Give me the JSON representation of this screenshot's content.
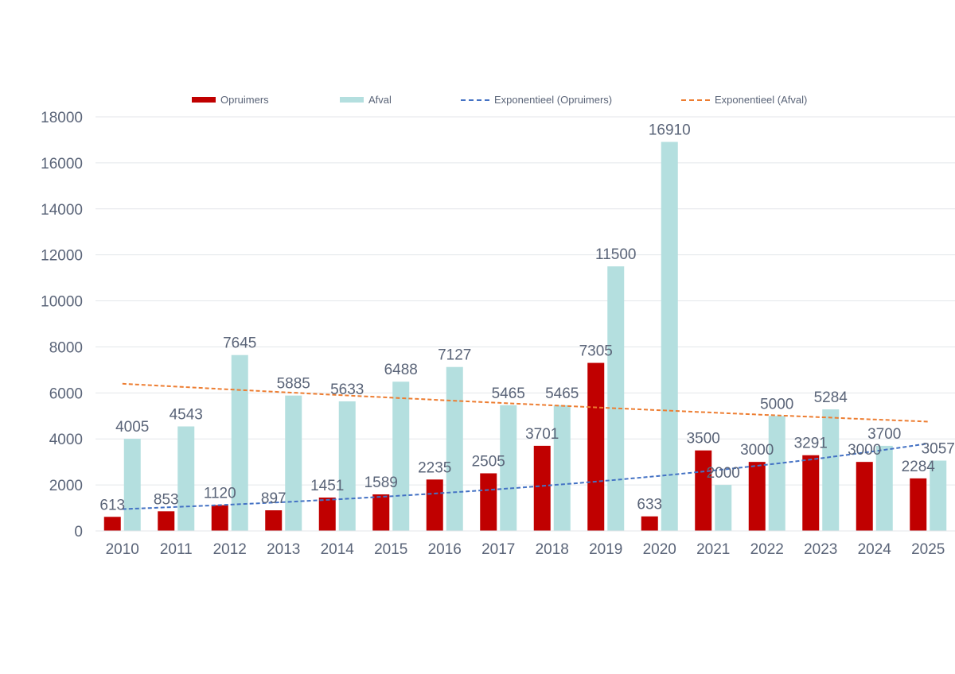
{
  "colors": {
    "opruimers": "#c00000",
    "afval": "#b4dfdf",
    "trend_opruimers": "#4472c4",
    "trend_afval": "#ed7d31",
    "text": "#5a6478",
    "grid": "#e3e6ea"
  },
  "legend": {
    "opruimers": "Opruimers",
    "afval": "Afval",
    "trend_opruimers": "Exponentieel (Opruimers)",
    "trend_afval": "Exponentieel (Afval)"
  },
  "chart_data": {
    "type": "bar",
    "categories": [
      "2010",
      "2011",
      "2012",
      "2013",
      "2014",
      "2015",
      "2016",
      "2017",
      "2018",
      "2019",
      "2020",
      "2021",
      "2022",
      "2023",
      "2024",
      "2025"
    ],
    "series": [
      {
        "name": "Opruimers",
        "values": [
          613,
          853,
          1120,
          897,
          1451,
          1589,
          2235,
          2505,
          3701,
          7305,
          633,
          3500,
          3000,
          3291,
          3000,
          2284
        ]
      },
      {
        "name": "Afval",
        "values": [
          4005,
          4543,
          7645,
          5885,
          5633,
          6488,
          7127,
          5465,
          5465,
          11500,
          16910,
          2000,
          5000,
          5284,
          3700,
          3057
        ]
      }
    ],
    "trendlines": [
      {
        "name": "Exponentieel (Opruimers)",
        "type": "exponential",
        "start": 950,
        "end": 3800
      },
      {
        "name": "Exponentieel (Afval)",
        "type": "exponential",
        "start": 6400,
        "end": 4750
      }
    ],
    "yticks": [
      0,
      2000,
      4000,
      6000,
      8000,
      10000,
      12000,
      14000,
      16000,
      18000
    ],
    "ylim": [
      0,
      18000
    ],
    "grid": true,
    "legend_position": "top"
  }
}
